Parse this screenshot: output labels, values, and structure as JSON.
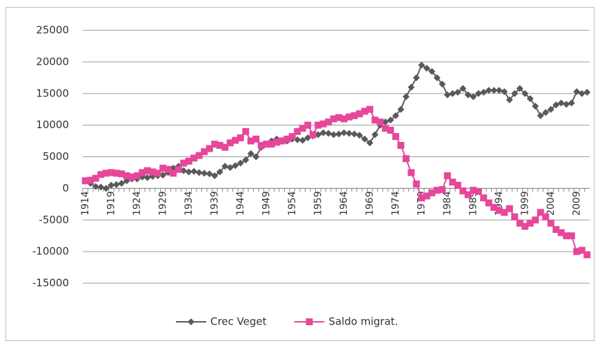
{
  "chart_data": {
    "type": "line",
    "categories": [
      "1914",
      null,
      null,
      null,
      null,
      "1919",
      null,
      null,
      null,
      null,
      "1924",
      null,
      null,
      null,
      null,
      "1929",
      null,
      null,
      null,
      null,
      "1934",
      null,
      null,
      null,
      null,
      "1939",
      null,
      null,
      null,
      null,
      "1944",
      null,
      null,
      null,
      null,
      "1949",
      null,
      null,
      null,
      null,
      "1954",
      null,
      null,
      null,
      null,
      "1959",
      null,
      null,
      null,
      null,
      "1964",
      null,
      null,
      null,
      null,
      "1969",
      null,
      null,
      null,
      null,
      "1974",
      null,
      null,
      null,
      null,
      "1979",
      null,
      null,
      null,
      null,
      "1984",
      null,
      null,
      null,
      null,
      "1989",
      null,
      null,
      null,
      null,
      "1994",
      null,
      null,
      null,
      null,
      "1999",
      null,
      null,
      null,
      null,
      "2004",
      null,
      null,
      null,
      null,
      "2009",
      null,
      null
    ],
    "series": [
      {
        "name": "Crec Veget",
        "color": "#595959",
        "marker": "diamond",
        "values": [
          1200,
          800,
          300,
          200,
          0,
          500,
          600,
          800,
          1200,
          1500,
          1500,
          1800,
          1700,
          1900,
          2000,
          2100,
          2500,
          3200,
          3500,
          2800,
          2600,
          2700,
          2500,
          2400,
          2300,
          2000,
          2600,
          3500,
          3300,
          3600,
          4000,
          4500,
          5500,
          5000,
          6500,
          7000,
          7500,
          7800,
          7600,
          7500,
          7800,
          7700,
          7600,
          8000,
          8300,
          8500,
          8800,
          8700,
          8500,
          8600,
          8800,
          8700,
          8600,
          8400,
          7800,
          7200,
          8500,
          10000,
          10500,
          10800,
          11500,
          12500,
          14500,
          16000,
          17500,
          19500,
          19000,
          18500,
          17500,
          16500,
          14800,
          15000,
          15200,
          15800,
          14800,
          14500,
          15000,
          15200,
          15500,
          15500,
          15500,
          15300,
          14000,
          15000,
          15800,
          15000,
          14200,
          13000,
          11500,
          12000,
          12500,
          13200,
          13500,
          13300,
          13500,
          15300,
          15000,
          15200
        ]
      },
      {
        "name": "Saldo migrat.",
        "color": "#e6479a",
        "marker": "square",
        "values": [
          1200,
          1300,
          1600,
          2200,
          2400,
          2500,
          2400,
          2300,
          2000,
          1800,
          2000,
          2500,
          2800,
          2600,
          2400,
          3200,
          3000,
          2400,
          3000,
          4000,
          4300,
          4800,
          5200,
          5800,
          6300,
          7000,
          6800,
          6500,
          7200,
          7600,
          8000,
          9000,
          7500,
          7800,
          6800,
          7000,
          7000,
          7300,
          7500,
          7800,
          8200,
          9000,
          9500,
          10000,
          8500,
          10000,
          10200,
          10500,
          11000,
          11200,
          11000,
          11300,
          11500,
          11800,
          12200,
          12500,
          10800,
          10500,
          9500,
          9200,
          8200,
          6800,
          4700,
          2500,
          700,
          -1500,
          -1200,
          -700,
          -300,
          -200,
          2000,
          1000,
          500,
          -400,
          -1000,
          -300,
          -500,
          -1500,
          -2300,
          -3000,
          -3500,
          -3800,
          -3200,
          -4500,
          -5500,
          -6000,
          -5500,
          -5000,
          -3800,
          -4500,
          -5500,
          -6500,
          -7000,
          -7500,
          -7500,
          -10000,
          -9800,
          -10500
        ]
      }
    ],
    "ylim": [
      -15000,
      25000
    ],
    "yticks": [
      -15000,
      -10000,
      -5000,
      0,
      5000,
      10000,
      15000,
      20000,
      25000
    ],
    "grid": true,
    "legend": "bottom"
  }
}
